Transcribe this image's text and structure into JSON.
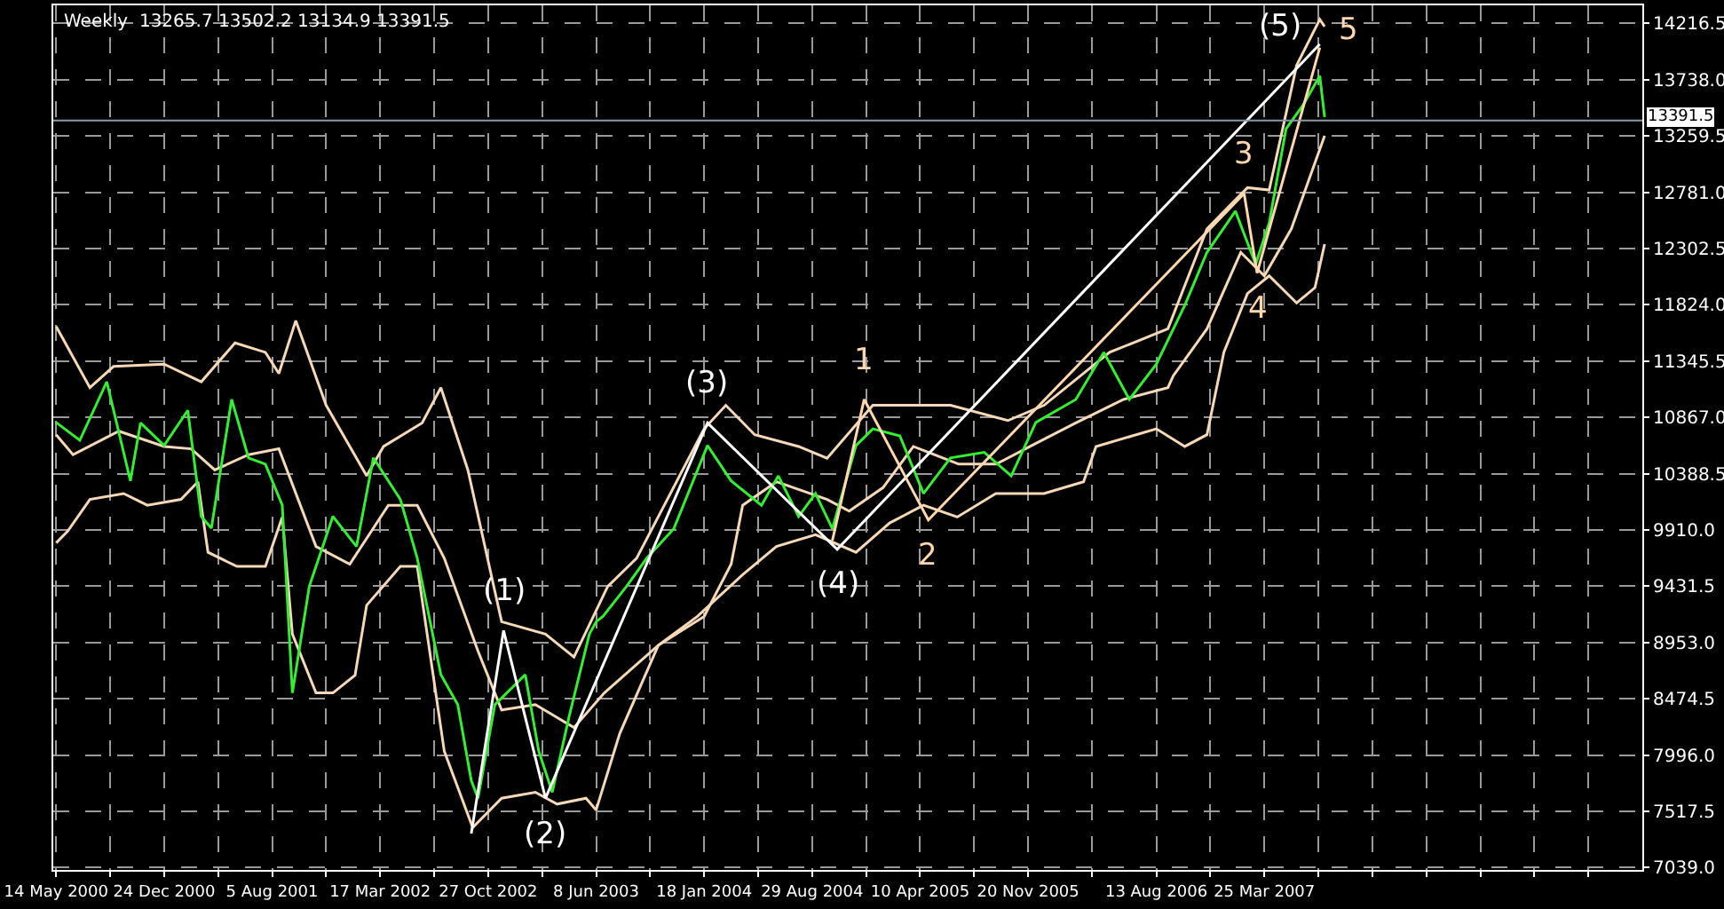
{
  "chart_data": {
    "type": "line",
    "title": "Weekly  13265.7 13502.2 13134.9 13391.5",
    "xlim": [
      "2000-05-08",
      "2009-05-17"
    ],
    "xticks": [
      {
        "value": "2000-05-14",
        "label": "14 May 2000"
      },
      {
        "value": "2000-09-03",
        "label": null
      },
      {
        "value": "2000-12-24",
        "label": "24 Dec 2000"
      },
      {
        "value": "2001-04-15",
        "label": null
      },
      {
        "value": "2001-08-05",
        "label": "5 Aug 2001"
      },
      {
        "value": "2001-11-25",
        "label": null
      },
      {
        "value": "2002-03-17",
        "label": "17 Mar 2002"
      },
      {
        "value": "2002-07-07",
        "label": null
      },
      {
        "value": "2002-10-27",
        "label": "27 Oct 2002"
      },
      {
        "value": "2003-02-16",
        "label": null
      },
      {
        "value": "2003-06-08",
        "label": "8 Jun 2003"
      },
      {
        "value": "2003-09-28",
        "label": null
      },
      {
        "value": "2004-01-18",
        "label": "18 Jan 2004"
      },
      {
        "value": "2004-05-09",
        "label": null
      },
      {
        "value": "2004-08-29",
        "label": "29 Aug 2004"
      },
      {
        "value": "2004-12-19",
        "label": null
      },
      {
        "value": "2005-04-10",
        "label": "10 Apr 2005"
      },
      {
        "value": "2005-07-31",
        "label": null
      },
      {
        "value": "2005-11-20",
        "label": "20 Nov 2005"
      },
      {
        "value": "2006-04-01",
        "label": null
      },
      {
        "value": "2006-08-13",
        "label": "13 Aug 2006"
      },
      {
        "value": "2006-12-03",
        "label": null
      },
      {
        "value": "2007-03-25",
        "label": "25 Mar 2007"
      },
      {
        "value": "2007-07-15",
        "label": null
      },
      {
        "value": "2007-11-04",
        "label": null
      },
      {
        "value": "2008-02-24",
        "label": null
      },
      {
        "value": "2008-06-15",
        "label": null
      },
      {
        "value": "2008-10-05",
        "label": null
      },
      {
        "value": "2009-01-25",
        "label": null
      }
    ],
    "ylim": [
      7020,
      14370
    ],
    "yticks": [
      {
        "value": 7039,
        "label": "7039.0"
      },
      7517.5,
      {
        "value": 7996,
        "label": "7996.0"
      },
      8474.5,
      {
        "value": 8953,
        "label": "8953.0"
      },
      9431.5,
      {
        "value": 9910,
        "label": "9910.0"
      },
      10388.5,
      {
        "value": 10867,
        "label": "10867.0"
      },
      11345.5,
      {
        "value": 11824,
        "label": "11824.0"
      },
      12302.5,
      {
        "value": 12781,
        "label": "12781.0"
      },
      13259.5,
      {
        "value": 13738,
        "label": "13738.0"
      },
      14216.5
    ],
    "grid": true,
    "line_style": "solid",
    "marker": "none",
    "ref_lines": [
      {
        "axis": "y",
        "value": 13391.5,
        "label": "13391.5",
        "color": "#8c9aa8"
      }
    ],
    "series": [
      {
        "color": "#f5d9b8",
        "x": [
          "2000-05-14",
          "2000-07-23",
          "2000-09-10",
          "2000-12-24",
          "2001-03-11",
          "2001-05-20",
          "2001-07-22",
          "2001-08-19",
          "2001-09-23",
          "2001-11-25",
          "2002-02-17",
          "2002-03-24",
          "2002-06-12",
          "2002-07-21",
          "2002-09-15",
          "2002-11-24",
          "2003-02-23",
          "2003-04-23",
          "2003-07-02",
          "2003-08-31",
          "2004-01-18",
          "2004-03-03",
          "2004-05-02",
          "2004-08-01",
          "2004-09-29",
          "2005-01-02",
          "2005-03-13",
          "2005-06-12",
          "2005-10-09",
          "2005-12-23",
          "2006-05-08",
          "2006-09-06",
          "2006-11-26",
          "2007-02-18",
          "2007-04-04",
          "2007-05-31",
          "2007-07-18",
          "2007-07-28"
        ],
        "values": [
          11640,
          11120,
          11300,
          11320,
          11170,
          11500,
          11420,
          11240,
          11690,
          10970,
          10370,
          10620,
          10820,
          11120,
          10420,
          9130,
          9025,
          8830,
          9430,
          9670,
          10770,
          10970,
          10720,
          10620,
          10520,
          10970,
          10970,
          10970,
          10840,
          10970,
          11420,
          11620,
          12470,
          12820,
          12800,
          13860,
          14250,
          14190
        ]
      },
      {
        "color": "#f5d9b8",
        "x": [
          "2000-05-14",
          "2000-06-18",
          "2000-09-21",
          "2000-12-24",
          "2001-02-18",
          "2001-04-08",
          "2001-06-17",
          "2001-08-19",
          "2001-11-04",
          "2002-01-13",
          "2002-04-03",
          "2002-06-02",
          "2002-07-28",
          "2002-10-06",
          "2002-11-24",
          "2003-02-02",
          "2003-04-23",
          "2003-06-25",
          "2003-10-15",
          "2004-01-18",
          "2004-03-14",
          "2004-04-07",
          "2004-06-16",
          "2004-09-29",
          "2004-11-14",
          "2005-01-23",
          "2005-03-27",
          "2005-06-29",
          "2005-09-15",
          "2005-11-24",
          "2006-02-27",
          "2006-06-06",
          "2006-09-06",
          "2006-09-17",
          "2006-11-26",
          "2007-02-04",
          "2007-03-25",
          "2007-05-20",
          "2007-07-28"
        ],
        "values": [
          10720,
          10550,
          10750,
          10620,
          10600,
          10420,
          10550,
          10600,
          9770,
          9620,
          10120,
          10120,
          9670,
          8880,
          8380,
          8425,
          8230,
          8525,
          8930,
          9175,
          9620,
          10120,
          10320,
          10170,
          10070,
          10270,
          10620,
          10470,
          10470,
          10620,
          10820,
          11020,
          11120,
          11220,
          11620,
          12270,
          12070,
          12470,
          13260
        ]
      },
      {
        "color": "#f5d9b8",
        "x": [
          "2000-05-14",
          "2000-06-07",
          "2000-07-23",
          "2000-10-01",
          "2000-11-19",
          "2001-01-28",
          "2001-03-04",
          "2001-03-25",
          "2001-05-24",
          "2001-07-22",
          "2001-08-26",
          "2001-09-16",
          "2001-11-04",
          "2001-12-09",
          "2002-01-24",
          "2002-02-17",
          "2002-04-28",
          "2002-06-02",
          "2002-07-28",
          "2002-09-25",
          "2002-11-24",
          "2003-02-02",
          "2003-03-19",
          "2003-05-18",
          "2003-06-08",
          "2003-07-27",
          "2003-10-15",
          "2004-01-04",
          "2004-04-07",
          "2004-06-16",
          "2004-09-05",
          "2004-11-28",
          "2005-02-06",
          "2005-04-17",
          "2005-06-26",
          "2005-09-14",
          "2005-12-23",
          "2006-03-15",
          "2006-04-10",
          "2006-08-13",
          "2006-10-11",
          "2006-11-26",
          "2006-12-31",
          "2007-02-18",
          "2007-04-04",
          "2007-05-31",
          "2007-07-08",
          "2007-07-28"
        ],
        "values": [
          9800,
          9900,
          10170,
          10220,
          10120,
          10170,
          10320,
          9720,
          9600,
          9600,
          10020,
          9025,
          8525,
          8525,
          8675,
          9270,
          9600,
          9600,
          8030,
          7380,
          7630,
          7680,
          7580,
          7630,
          7530,
          8180,
          8930,
          9175,
          9530,
          9770,
          9870,
          9720,
          9970,
          10120,
          10020,
          10220,
          10220,
          10320,
          10620,
          10770,
          10620,
          10720,
          11420,
          11920,
          12070,
          11840,
          11970,
          12340
        ]
      },
      {
        "color": "#33ee33",
        "x": [
          "2000-05-14",
          "2000-07-02",
          "2000-08-27",
          "2000-10-15",
          "2000-11-05",
          "2000-12-24",
          "2001-02-11",
          "2001-03-11",
          "2001-04-01",
          "2001-05-13",
          "2001-06-17",
          "2001-07-22",
          "2001-08-26",
          "2001-09-16",
          "2001-10-21",
          "2001-12-09",
          "2002-01-27",
          "2002-03-03",
          "2002-04-28",
          "2002-06-02",
          "2002-07-21",
          "2002-08-25",
          "2002-09-22",
          "2002-10-06",
          "2002-11-10",
          "2003-01-12",
          "2003-02-09",
          "2003-03-09",
          "2003-04-13",
          "2003-05-25",
          "2003-06-08",
          "2003-06-22",
          "2003-08-10",
          "2003-09-21",
          "2003-11-16",
          "2004-01-25",
          "2004-03-14",
          "2004-05-16",
          "2004-06-20",
          "2004-08-01",
          "2004-09-05",
          "2004-10-10",
          "2004-11-28",
          "2005-01-02",
          "2005-02-27",
          "2005-04-17",
          "2005-06-12",
          "2005-08-21",
          "2005-10-16",
          "2005-12-06",
          "2006-02-27",
          "2006-04-26",
          "2006-06-18",
          "2006-08-13",
          "2006-10-11",
          "2006-11-26",
          "2007-01-24",
          "2007-03-07",
          "2007-04-04",
          "2007-05-09",
          "2007-06-13",
          "2007-07-18",
          "2007-07-28"
        ],
        "values": [
          10824,
          10672,
          11170,
          10328,
          10820,
          10628,
          10927,
          10025,
          9925,
          11020,
          10523,
          10470,
          10120,
          8525,
          9430,
          10025,
          9770,
          10523,
          10170,
          9670,
          8680,
          8425,
          7780,
          7630,
          8425,
          8680,
          8030,
          7680,
          8325,
          9025,
          9130,
          9175,
          9430,
          9670,
          9920,
          10628,
          10328,
          10120,
          10370,
          10025,
          10220,
          9920,
          10628,
          10770,
          10710,
          10220,
          10523,
          10570,
          10370,
          10824,
          11020,
          11420,
          11020,
          11320,
          11820,
          12270,
          12620,
          12170,
          12520,
          13320,
          13520,
          13770,
          13420
        ]
      },
      {
        "color": "#ffffff",
        "x": [
          "2002-09-22",
          "2002-11-28",
          "2003-02-23",
          "2004-01-25",
          "2004-10-20",
          "2007-07-18"
        ],
        "values": [
          7330,
          9055,
          7630,
          10820,
          9745,
          14040
        ]
      },
      {
        "color": "#ffd8b0",
        "x": [
          "2004-10-10",
          "2004-12-15",
          "2005-04-27",
          "2007-02-11",
          "2007-03-10",
          "2007-07-18"
        ],
        "values": [
          9820,
          11020,
          9995,
          12770,
          12095,
          14010
        ]
      }
    ],
    "annotations": [
      {
        "text": "(1)",
        "x": "2002-11-28",
        "y": 9055
      },
      {
        "text": "(2)",
        "x": "2003-02-23",
        "y": 7630
      },
      {
        "text": "(3)",
        "x": "2004-01-25",
        "y": 10820
      },
      {
        "text": "(4)",
        "x": "2004-10-20",
        "y": 9745
      },
      {
        "text": "(5)",
        "x": "2007-07-18",
        "y": 14040
      },
      {
        "text": "1",
        "x": "2004-12-15",
        "y": 11020
      },
      {
        "text": "2",
        "x": "2005-04-27",
        "y": 9995
      },
      {
        "text": "3",
        "x": "2007-02-11",
        "y": 12770
      },
      {
        "text": "4",
        "x": "2007-03-10",
        "y": 12095
      },
      {
        "text": "5",
        "x": "2007-07-18",
        "y": 14010
      }
    ]
  }
}
